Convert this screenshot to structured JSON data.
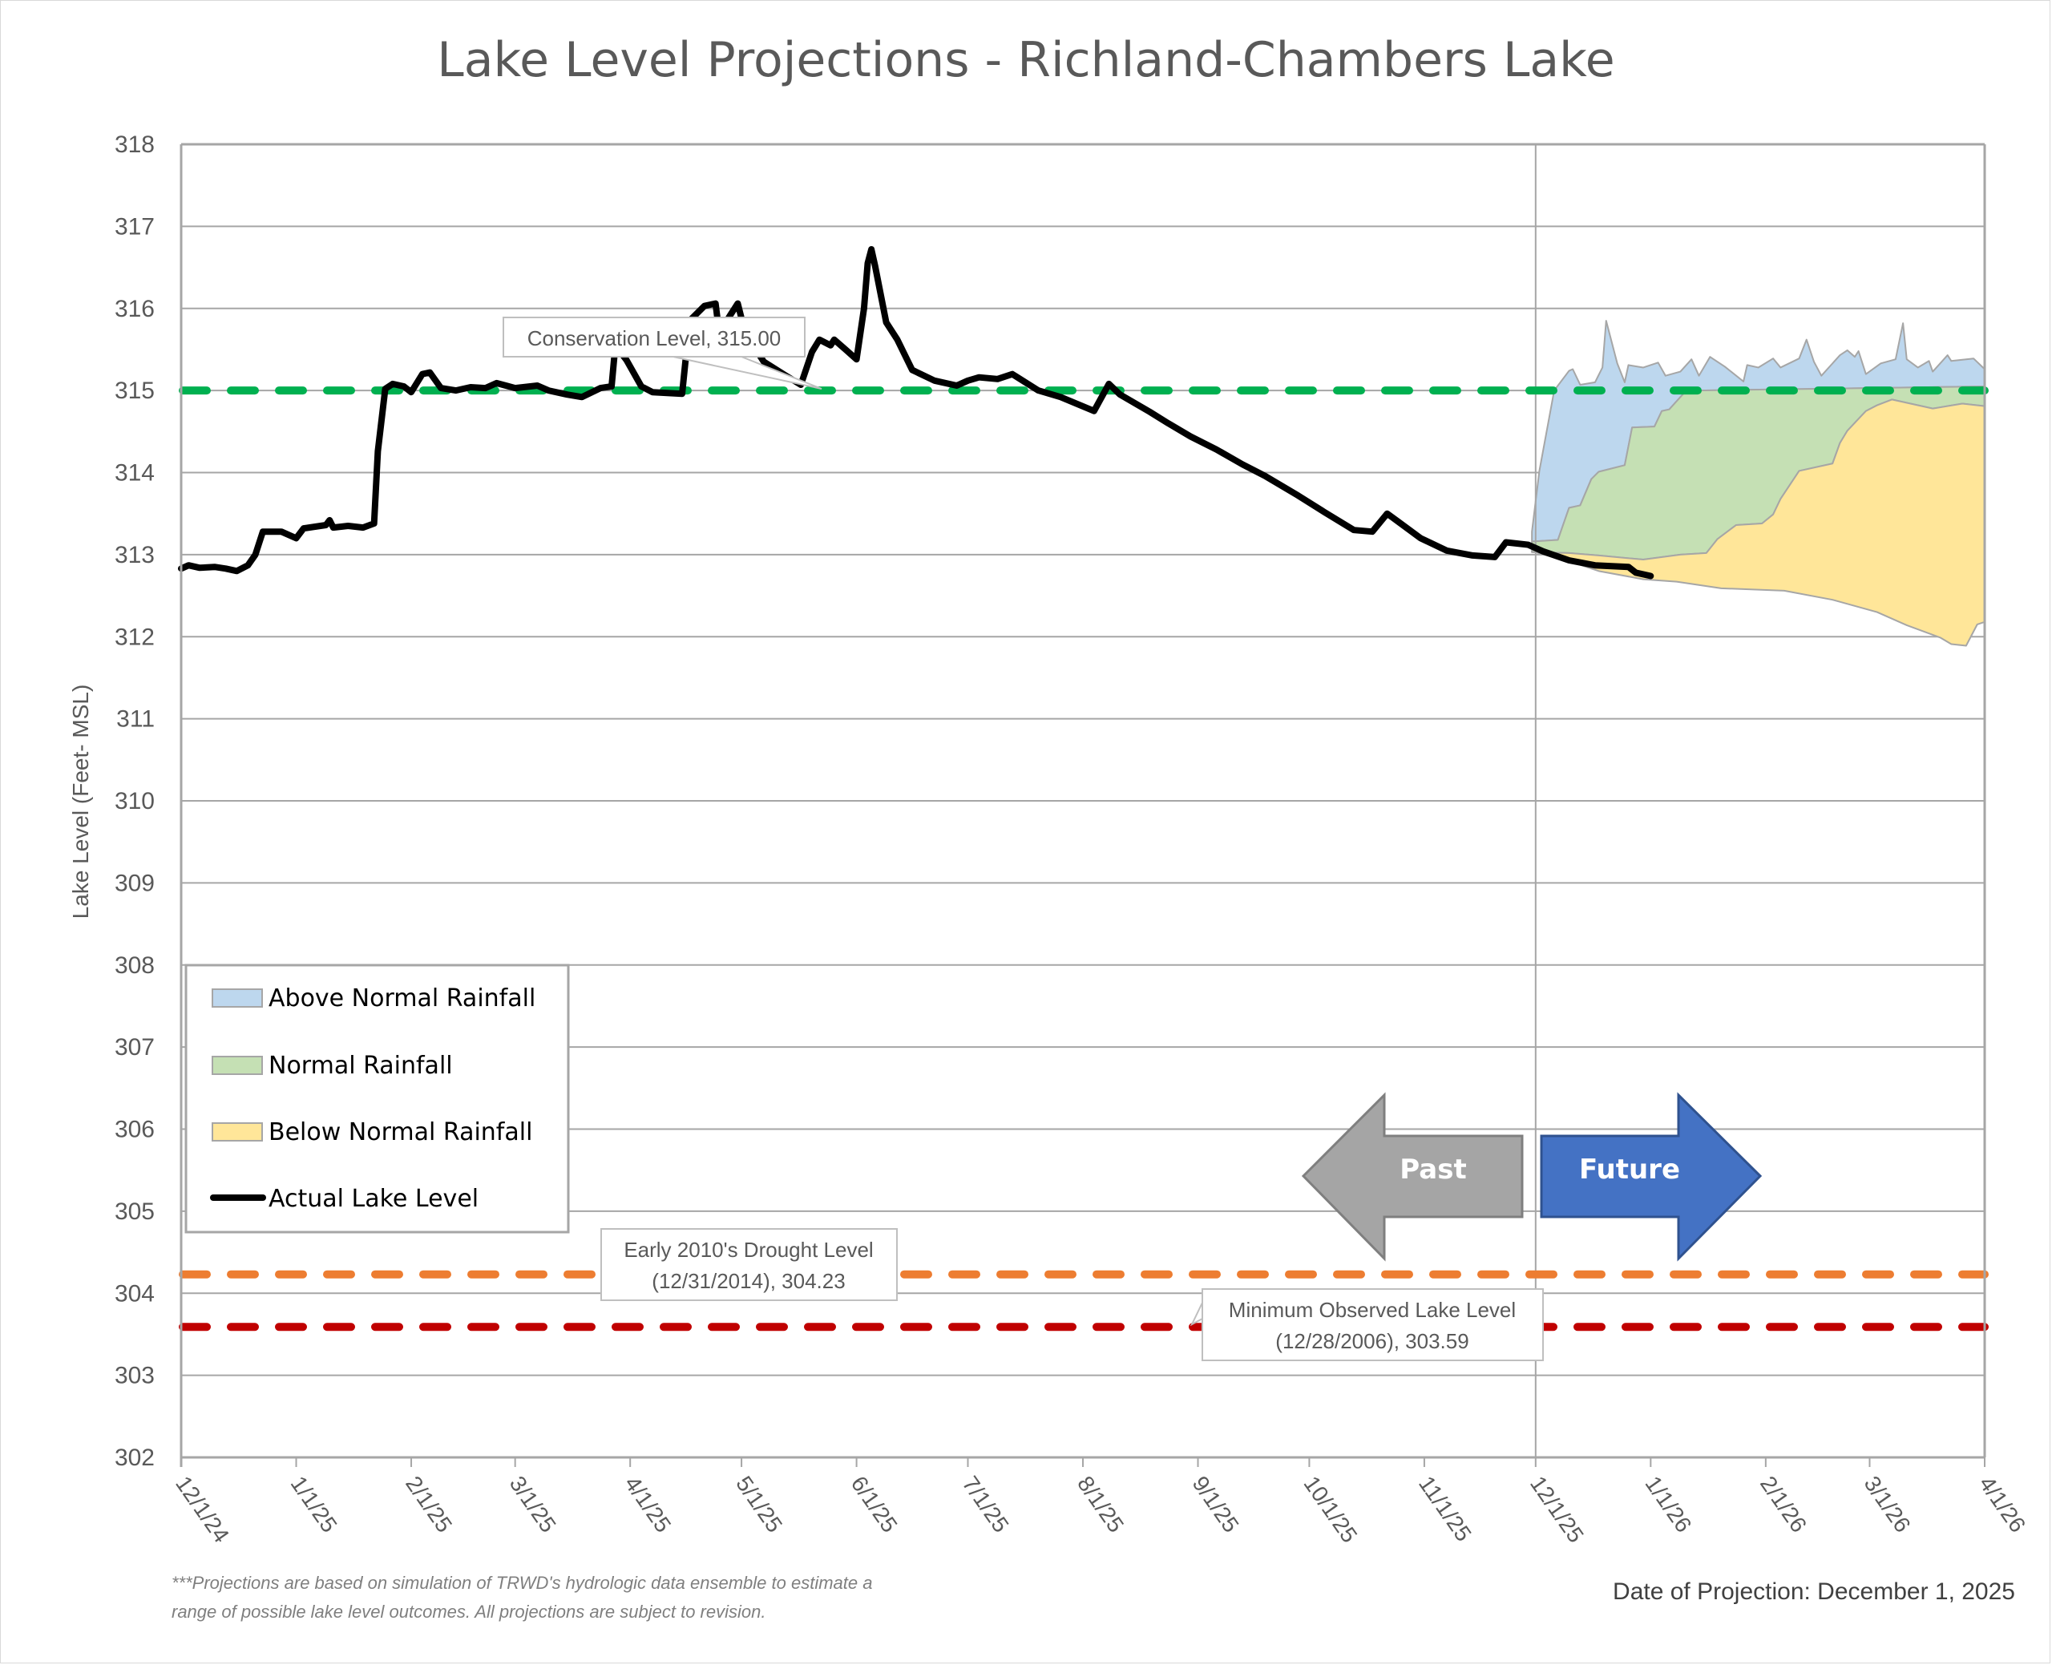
{
  "chart_data": {
    "type": "area",
    "title": "Lake Level Projections - Richland-Chambers Lake",
    "ylabel": "Lake Level (Feet- MSL)",
    "xlabel": "",
    "x_unit": "days since 12/1/24",
    "xlim": [
      0,
      486
    ],
    "ylim": [
      302,
      318
    ],
    "grid": true,
    "y_ticks": [
      "302",
      "303",
      "304",
      "305",
      "306",
      "307",
      "308",
      "309",
      "310",
      "311",
      "312",
      "313",
      "314",
      "315",
      "316",
      "317",
      "318"
    ],
    "x_ticks": [
      {
        "day": 0,
        "label": "12/1/24"
      },
      {
        "day": 31,
        "label": "1/1/25"
      },
      {
        "day": 62,
        "label": "2/1/25"
      },
      {
        "day": 90,
        "label": "3/1/25"
      },
      {
        "day": 121,
        "label": "4/1/25"
      },
      {
        "day": 151,
        "label": "5/1/25"
      },
      {
        "day": 182,
        "label": "6/1/25"
      },
      {
        "day": 212,
        "label": "7/1/25"
      },
      {
        "day": 243,
        "label": "8/1/25"
      },
      {
        "day": 274,
        "label": "9/1/25"
      },
      {
        "day": 304,
        "label": "10/1/25"
      },
      {
        "day": 335,
        "label": "11/1/25"
      },
      {
        "day": 365,
        "label": "12/1/25"
      },
      {
        "day": 396,
        "label": "1/1/26"
      },
      {
        "day": 427,
        "label": "2/1/26"
      },
      {
        "day": 455,
        "label": "3/1/26"
      },
      {
        "day": 486,
        "label": "4/1/26"
      }
    ],
    "projection_start_day": 365,
    "legend": {
      "position": "bottom-left",
      "entries": [
        {
          "name": "Above Normal Rainfall",
          "type": "area",
          "color": "#bdd7ee"
        },
        {
          "name": "Normal Rainfall",
          "type": "area",
          "color": "#c5e0b4"
        },
        {
          "name": "Below Normal Rainfall",
          "type": "area",
          "color": "#ffe699"
        },
        {
          "name": "Actual Lake Level",
          "type": "line",
          "color": "#000000"
        }
      ]
    },
    "reference_lines": [
      {
        "name": "Conservation Level",
        "value": 315.0,
        "color": "#00b050",
        "label": "Conservation Level, 315.00"
      },
      {
        "name": "Early 2010's Drought Level",
        "value": 304.23,
        "color": "#ed7d31",
        "label_line1": "Early 2010's Drought Level",
        "label_line2": "(12/31/2014), 304.23"
      },
      {
        "name": "Minimum Observed Lake Level",
        "value": 303.59,
        "color": "#c00000",
        "label_line1": "Minimum Observed Lake Level",
        "label_line2": "(12/28/2006), 303.59"
      }
    ],
    "series": [
      {
        "name": "Actual Lake Level",
        "type": "line",
        "color": "#000000",
        "points": [
          [
            0,
            312.83
          ],
          [
            2,
            312.87
          ],
          [
            5,
            312.84
          ],
          [
            9,
            312.85
          ],
          [
            12,
            312.83
          ],
          [
            15,
            312.8
          ],
          [
            18,
            312.87
          ],
          [
            20,
            313.0
          ],
          [
            22,
            313.28
          ],
          [
            27,
            313.28
          ],
          [
            31,
            313.2
          ],
          [
            33,
            313.32
          ],
          [
            39,
            313.36
          ],
          [
            40,
            313.42
          ],
          [
            41,
            313.33
          ],
          [
            45,
            313.35
          ],
          [
            49,
            313.33
          ],
          [
            52,
            313.38
          ],
          [
            53,
            314.26
          ],
          [
            55,
            315.02
          ],
          [
            57,
            315.08
          ],
          [
            60,
            315.05
          ],
          [
            62,
            314.98
          ],
          [
            65,
            315.2
          ],
          [
            67,
            315.22
          ],
          [
            70,
            315.03
          ],
          [
            74,
            315.0
          ],
          [
            78,
            315.04
          ],
          [
            82,
            315.03
          ],
          [
            85,
            315.09
          ],
          [
            90,
            315.03
          ],
          [
            96,
            315.06
          ],
          [
            99,
            315.0
          ],
          [
            104,
            314.95
          ],
          [
            108,
            314.92
          ],
          [
            113,
            315.03
          ],
          [
            116,
            315.05
          ],
          [
            117,
            315.55
          ],
          [
            120,
            315.37
          ],
          [
            124,
            315.05
          ],
          [
            127,
            314.98
          ],
          [
            135,
            314.96
          ],
          [
            137,
            315.85
          ],
          [
            141,
            316.03
          ],
          [
            144,
            316.06
          ],
          [
            145,
            315.7
          ],
          [
            148,
            315.92
          ],
          [
            150,
            316.06
          ],
          [
            152,
            315.7
          ],
          [
            157,
            315.35
          ],
          [
            163,
            315.18
          ],
          [
            167,
            315.07
          ],
          [
            170,
            315.47
          ],
          [
            172,
            315.62
          ],
          [
            175,
            315.55
          ],
          [
            176,
            315.62
          ],
          [
            179,
            315.5
          ],
          [
            182,
            315.38
          ],
          [
            184,
            316.0
          ],
          [
            185,
            316.55
          ],
          [
            186,
            316.72
          ],
          [
            187,
            316.52
          ],
          [
            190,
            315.83
          ],
          [
            193,
            315.62
          ],
          [
            197,
            315.25
          ],
          [
            203,
            315.12
          ],
          [
            209,
            315.06
          ],
          [
            212,
            315.12
          ],
          [
            215,
            315.16
          ],
          [
            220,
            315.14
          ],
          [
            224,
            315.2
          ],
          [
            231,
            315.0
          ],
          [
            237,
            314.92
          ],
          [
            246,
            314.75
          ],
          [
            250,
            315.08
          ],
          [
            253,
            314.95
          ],
          [
            261,
            314.74
          ],
          [
            266,
            314.6
          ],
          [
            272,
            314.44
          ],
          [
            279,
            314.28
          ],
          [
            286,
            314.1
          ],
          [
            292,
            313.96
          ],
          [
            301,
            313.72
          ],
          [
            308,
            313.52
          ],
          [
            316,
            313.3
          ],
          [
            321,
            313.28
          ],
          [
            325,
            313.5
          ],
          [
            328,
            313.4
          ],
          [
            334,
            313.2
          ],
          [
            341,
            313.05
          ],
          [
            348,
            312.99
          ],
          [
            354,
            312.97
          ],
          [
            357,
            313.15
          ],
          [
            363,
            313.12
          ],
          [
            367,
            313.04
          ],
          [
            374,
            312.93
          ],
          [
            381,
            312.87
          ],
          [
            390,
            312.85
          ],
          [
            392,
            312.78
          ],
          [
            396,
            312.74
          ]
        ]
      },
      {
        "name": "Above Normal Rainfall",
        "type": "band",
        "color": "#bdd7ee",
        "upper": [
          [
            364,
            313.28
          ],
          [
            366,
            314.02
          ],
          [
            370,
            315.0
          ],
          [
            374,
            315.24
          ],
          [
            375,
            315.26
          ],
          [
            377,
            315.07
          ],
          [
            381,
            315.1
          ],
          [
            383,
            315.28
          ],
          [
            384,
            315.85
          ],
          [
            387,
            315.33
          ],
          [
            389,
            315.1
          ],
          [
            390,
            315.31
          ],
          [
            394,
            315.28
          ],
          [
            398,
            315.34
          ],
          [
            400,
            315.18
          ],
          [
            404,
            315.23
          ],
          [
            407,
            315.38
          ],
          [
            409,
            315.18
          ],
          [
            412,
            315.41
          ],
          [
            416,
            315.29
          ],
          [
            421,
            315.11
          ],
          [
            422,
            315.31
          ],
          [
            425,
            315.28
          ],
          [
            429,
            315.39
          ],
          [
            431,
            315.28
          ],
          [
            436,
            315.39
          ],
          [
            438,
            315.62
          ],
          [
            440,
            315.35
          ],
          [
            442,
            315.18
          ],
          [
            447,
            315.43
          ],
          [
            449,
            315.49
          ],
          [
            451,
            315.41
          ],
          [
            452,
            315.48
          ],
          [
            454,
            315.2
          ],
          [
            458,
            315.33
          ],
          [
            462,
            315.38
          ],
          [
            464,
            315.82
          ],
          [
            465,
            315.38
          ],
          [
            468,
            315.28
          ],
          [
            471,
            315.36
          ],
          [
            472,
            315.23
          ],
          [
            476,
            315.43
          ],
          [
            477,
            315.36
          ],
          [
            483,
            315.39
          ],
          [
            486,
            315.26
          ]
        ],
        "lower": [
          [
            364,
            313.16
          ],
          [
            371,
            313.18
          ],
          [
            374,
            313.57
          ],
          [
            377,
            313.6
          ],
          [
            380,
            313.92
          ],
          [
            382,
            314.01
          ],
          [
            389,
            314.09
          ],
          [
            391,
            314.55
          ],
          [
            397,
            314.56
          ],
          [
            399,
            314.75
          ],
          [
            401,
            314.77
          ],
          [
            405,
            314.97
          ],
          [
            409,
            315.0
          ],
          [
            486,
            315.05
          ]
        ]
      },
      {
        "name": "Normal Rainfall",
        "type": "band",
        "color": "#c5e0b4",
        "upper": [
          [
            364,
            313.16
          ],
          [
            371,
            313.18
          ],
          [
            374,
            313.57
          ],
          [
            377,
            313.6
          ],
          [
            380,
            313.92
          ],
          [
            382,
            314.01
          ],
          [
            389,
            314.09
          ],
          [
            391,
            314.55
          ],
          [
            397,
            314.56
          ],
          [
            399,
            314.75
          ],
          [
            401,
            314.77
          ],
          [
            405,
            314.97
          ],
          [
            409,
            315.0
          ],
          [
            486,
            315.05
          ]
        ],
        "lower": [
          [
            364,
            313.03
          ],
          [
            374,
            313.02
          ],
          [
            382,
            312.99
          ],
          [
            394,
            312.94
          ],
          [
            404,
            313.0
          ],
          [
            411,
            313.02
          ],
          [
            414,
            313.19
          ],
          [
            419,
            313.36
          ],
          [
            426,
            313.38
          ],
          [
            429,
            313.49
          ],
          [
            431,
            313.68
          ],
          [
            436,
            314.02
          ],
          [
            445,
            314.11
          ],
          [
            447,
            314.36
          ],
          [
            449,
            314.51
          ],
          [
            454,
            314.75
          ],
          [
            457,
            314.82
          ],
          [
            461,
            314.89
          ],
          [
            472,
            314.78
          ],
          [
            480,
            314.84
          ],
          [
            486,
            314.81
          ]
        ]
      },
      {
        "name": "Below Normal Rainfall",
        "type": "band",
        "color": "#ffe699",
        "upper": [
          [
            364,
            313.03
          ],
          [
            374,
            313.02
          ],
          [
            382,
            312.99
          ],
          [
            394,
            312.94
          ],
          [
            404,
            313.0
          ],
          [
            411,
            313.02
          ],
          [
            414,
            313.19
          ],
          [
            419,
            313.36
          ],
          [
            426,
            313.38
          ],
          [
            429,
            313.49
          ],
          [
            431,
            313.68
          ],
          [
            436,
            314.02
          ],
          [
            445,
            314.11
          ],
          [
            447,
            314.36
          ],
          [
            449,
            314.51
          ],
          [
            454,
            314.75
          ],
          [
            457,
            314.82
          ],
          [
            461,
            314.89
          ],
          [
            472,
            314.78
          ],
          [
            480,
            314.84
          ],
          [
            486,
            314.81
          ]
        ],
        "lower": [
          [
            364,
            313.04
          ],
          [
            374,
            312.92
          ],
          [
            382,
            312.8
          ],
          [
            394,
            312.7
          ],
          [
            403,
            312.67
          ],
          [
            415,
            312.59
          ],
          [
            432,
            312.56
          ],
          [
            445,
            312.45
          ],
          [
            457,
            312.3
          ],
          [
            465,
            312.14
          ],
          [
            474,
            311.99
          ],
          [
            477,
            311.91
          ],
          [
            481,
            311.89
          ],
          [
            484,
            312.15
          ],
          [
            486,
            312.18
          ]
        ]
      }
    ],
    "annotations": {
      "past_arrow": "Past",
      "future_arrow": "Future",
      "footnote_line1": "***Projections are based on simulation of TRWD's hydrologic data ensemble to estimate a",
      "footnote_line2": "range of possible lake level outcomes.  All projections are subject to revision.",
      "date_of_projection": "Date of Projection: December 1, 2025"
    }
  }
}
